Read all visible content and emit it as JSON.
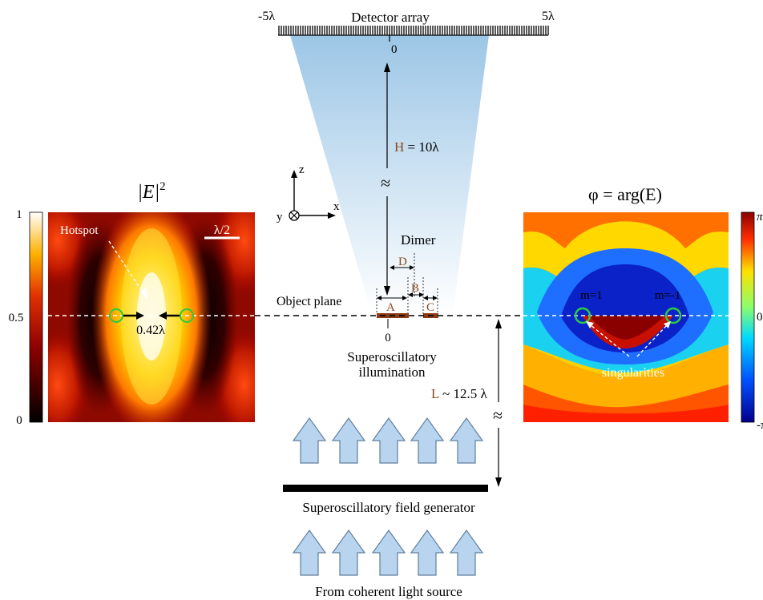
{
  "detector": {
    "title": "Detector array",
    "left_tick": "-5λ",
    "right_tick": "5λ",
    "center_tick": "0"
  },
  "height_label": {
    "letter": "H",
    "rest": " = 10λ"
  },
  "approx_symbol": "≈",
  "axes": {
    "z": "z",
    "x": "x",
    "y": "y"
  },
  "dimer": {
    "title": "Dimer",
    "segments": [
      "A",
      "B",
      "C",
      "D"
    ],
    "origin": "0"
  },
  "object_plane": "Object plane",
  "illumination": [
    "Superoscillatory",
    "illumination"
  ],
  "distance_label": {
    "letter": "L",
    "rest": " ~ 12.5 λ"
  },
  "generator_label": "Superoscillatory field generator",
  "source_label": "From coherent light source",
  "intensity_panel": {
    "title_main": "|E|",
    "title_sup": "2",
    "hotspot": "Hotspot",
    "scale_bar": "λ/2",
    "width_label": "0.42λ",
    "colorbar_ticks": [
      "1",
      "0.5",
      "0"
    ]
  },
  "phase_panel": {
    "title": "φ = arg(E)",
    "singularity_left": "m=1",
    "singularity_right": "m=-1",
    "singularities": "singularities",
    "colorbar_ticks": [
      "π",
      "0",
      "-π"
    ]
  },
  "colors": {
    "brown_label": "#8b4a1e",
    "green_circle": "#2ecc40",
    "arrow_fill": "#b8d4ee",
    "cone_top": "#9cc6e6"
  }
}
